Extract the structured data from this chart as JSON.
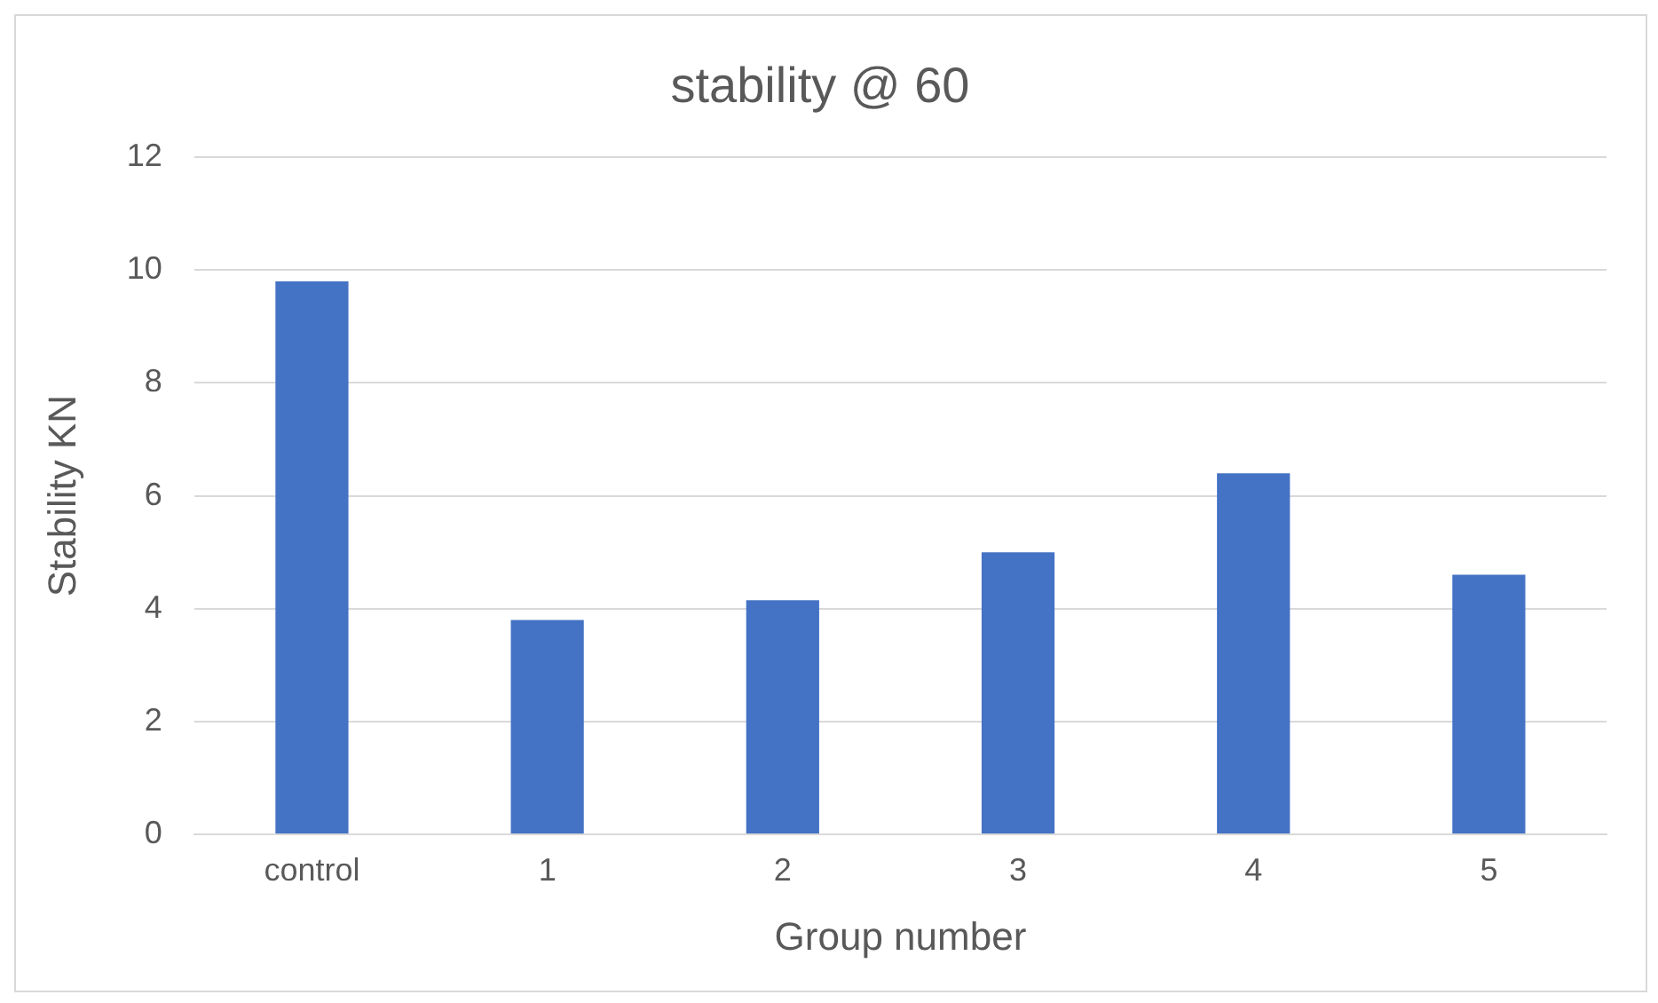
{
  "chart_data": {
    "type": "bar",
    "title": "stability @ 60",
    "xlabel": "Group number",
    "ylabel": "Stability KN",
    "categories": [
      "control",
      "1",
      "2",
      "3",
      "4",
      "5"
    ],
    "values": [
      9.8,
      3.8,
      4.15,
      5.0,
      6.4,
      4.6
    ],
    "color": "#4472c4",
    "ylim": [
      0,
      12
    ],
    "yticks": [
      0,
      2,
      4,
      6,
      8,
      10,
      12
    ],
    "grid": "y",
    "legend": false
  }
}
